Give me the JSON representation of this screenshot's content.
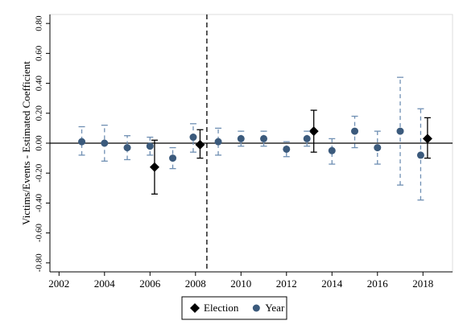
{
  "chart_data": {
    "type": "coefplot",
    "y_label": "Victims/Events - Estimated Coefficient",
    "xlim": [
      2001.6,
      2019.3
    ],
    "ylim": [
      -0.86,
      0.86
    ],
    "xticks": [
      2002,
      2004,
      2006,
      2008,
      2010,
      2012,
      2014,
      2016,
      2018
    ],
    "yticks": [
      {
        "value": -0.8,
        "label": "-0.80"
      },
      {
        "value": -0.6,
        "label": "-0.60"
      },
      {
        "value": -0.4,
        "label": "-0.40"
      },
      {
        "value": -0.2,
        "label": "-0.20"
      },
      {
        "value": 0,
        "label": "0.00"
      },
      {
        "value": 0.2,
        "label": "0.20"
      },
      {
        "value": 0.4,
        "label": "0.40"
      },
      {
        "value": 0.6,
        "label": "0.60"
      },
      {
        "value": 0.8,
        "label": "0.80"
      }
    ],
    "hline": 0,
    "vline": 2008.5,
    "series": [
      {
        "name": "Election",
        "color": "#000000",
        "marker": "diamond",
        "line": "solid",
        "x": [
          2006.2,
          2008.2,
          2013.2,
          2018.2
        ],
        "values": [
          -0.16,
          -0.01,
          0.08,
          0.03
        ],
        "lower": [
          -0.34,
          -0.1,
          -0.06,
          -0.1
        ],
        "upper": [
          0.02,
          0.09,
          0.22,
          0.17
        ]
      },
      {
        "name": "Year",
        "color": "#3b5a7c",
        "errcolor": "#6f8fb3",
        "marker": "circle",
        "line": "dashed",
        "x": [
          2003,
          2004,
          2005,
          2006,
          2007,
          2007.9,
          2009,
          2010,
          2011,
          2012,
          2012.9,
          2014,
          2015,
          2016,
          2017,
          2017.9
        ],
        "values": [
          0.01,
          0.0,
          -0.03,
          -0.02,
          -0.1,
          0.04,
          0.01,
          0.03,
          0.03,
          -0.04,
          0.03,
          -0.05,
          0.08,
          -0.03,
          0.08,
          -0.08
        ],
        "lower": [
          -0.08,
          -0.12,
          -0.11,
          -0.08,
          -0.17,
          -0.06,
          -0.08,
          -0.02,
          -0.02,
          -0.09,
          -0.02,
          -0.14,
          -0.03,
          -0.14,
          -0.28,
          -0.38
        ],
        "upper": [
          0.11,
          0.12,
          0.05,
          0.04,
          -0.03,
          0.13,
          0.1,
          0.08,
          0.08,
          0.01,
          0.08,
          0.03,
          0.18,
          0.08,
          0.44,
          0.23
        ]
      }
    ]
  }
}
